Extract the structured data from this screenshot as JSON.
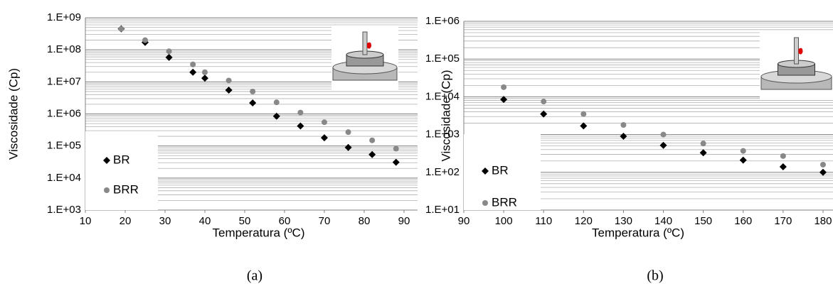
{
  "chart_data": [
    {
      "type": "scatter",
      "log_y": true,
      "grid": true,
      "minor_grid": true,
      "legend": "lower left",
      "caption": "(a)",
      "xlabel": "Temperatura (ºC)",
      "ylabel": "Viscosidade (Cp)",
      "x": [
        19,
        25,
        31,
        37,
        40,
        46,
        52,
        58,
        64,
        70,
        76,
        82,
        88
      ],
      "series": [
        {
          "name": "BR",
          "color": "#000000",
          "marker": "diamond",
          "values": [
            450000000,
            170000000,
            58000000,
            20000000,
            13000000,
            5500000,
            2200000,
            850000,
            420000,
            180000,
            90000,
            54000,
            31000
          ]
        },
        {
          "name": "BRR",
          "color": "#888888",
          "marker": "circle",
          "values": [
            450000000,
            200000000,
            90000000,
            35000000,
            20000000,
            11000000,
            5000000,
            2300000,
            1100000,
            550000,
            270000,
            150000,
            82000
          ]
        }
      ],
      "xlim": [
        10,
        93.4
      ],
      "xticks": [
        10,
        20,
        30,
        40,
        50,
        60,
        70,
        80,
        90
      ],
      "ylim": [
        1000,
        1000000000
      ],
      "yticks": [
        {
          "value": 1000,
          "label": "1.E+03"
        },
        {
          "value": 10000,
          "label": "1.E+04"
        },
        {
          "value": 100000,
          "label": "1.E+05"
        },
        {
          "value": 1000000,
          "label": "1.E+06"
        },
        {
          "value": 10000000,
          "label": "1.E+07"
        },
        {
          "value": 100000000,
          "label": "1.E+08"
        },
        {
          "value": 1000000000,
          "label": "1.E+09"
        }
      ]
    },
    {
      "type": "scatter",
      "log_y": true,
      "grid": true,
      "minor_grid": true,
      "legend": "lower left",
      "caption": "(b)",
      "xlabel": "Temperatura (ºC)",
      "ylabel": "Viscosidade (Cp)",
      "x": [
        100,
        110,
        120,
        130,
        140,
        150,
        160,
        170,
        180
      ],
      "series": [
        {
          "name": "BR",
          "color": "#000000",
          "marker": "diamond",
          "values": [
            8500,
            3500,
            1700,
            900,
            520,
            330,
            210,
            140,
            100
          ]
        },
        {
          "name": "BRR",
          "color": "#888888",
          "marker": "circle",
          "values": [
            18000,
            7500,
            3500,
            1800,
            1000,
            580,
            370,
            270,
            160
          ]
        }
      ],
      "xlim": [
        90,
        182.5
      ],
      "xticks": [
        90,
        100,
        110,
        120,
        130,
        140,
        150,
        160,
        170,
        180
      ],
      "ylim": [
        10,
        1000000
      ],
      "yticks": [
        {
          "value": 10,
          "label": "1.E+01"
        },
        {
          "value": 100,
          "label": "1.E+02"
        },
        {
          "value": 1000,
          "label": "1.E+03"
        },
        {
          "value": 10000,
          "label": "1.E+04"
        },
        {
          "value": 100000,
          "label": "1.E+05"
        },
        {
          "value": 1000000,
          "label": "1.E+06"
        }
      ]
    }
  ]
}
